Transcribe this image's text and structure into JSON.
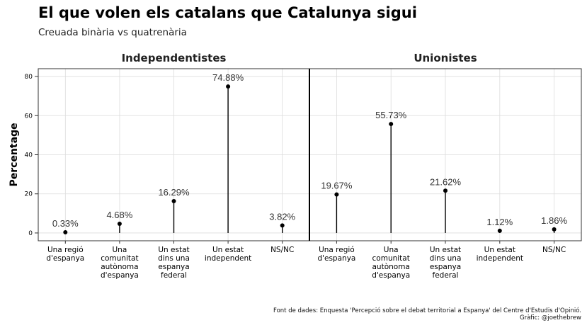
{
  "title": "El que volen els catalans que Catalunya sigui",
  "subtitle": "Creuada binària vs quatrenària",
  "caption": {
    "line1": "Font de dades: Enquesta 'Percepció sobre el debat territorial a Espanya' del Centre d'Estudis d'Opinió.",
    "line2": "Gràfic: @joethebrew"
  },
  "chart_data": {
    "type": "scatter",
    "ylabel": "Percentage",
    "ylim": [
      -4,
      84
    ],
    "yticks": [
      0,
      20,
      40,
      60,
      80
    ],
    "grid": true,
    "categories": [
      [
        "Una regió",
        "d'espanya"
      ],
      [
        "Una",
        "comunitat",
        "autònoma",
        "d'espanya"
      ],
      [
        "Un estat",
        "dins una",
        "espanya",
        "federal"
      ],
      [
        "Un estat",
        "independent"
      ],
      [
        "NS/NC"
      ]
    ],
    "panels": [
      {
        "name": "Independentistes",
        "values": [
          0.33,
          4.68,
          16.29,
          74.88,
          3.82
        ],
        "labels": [
          "0.33%",
          "4.68%",
          "16.29%",
          "74.88%",
          "3.82%"
        ]
      },
      {
        "name": "Unionistes",
        "values": [
          19.67,
          55.73,
          21.62,
          1.12,
          1.86
        ],
        "labels": [
          "19.67%",
          "55.73%",
          "21.62%",
          "1.12%",
          "1.86%"
        ]
      }
    ],
    "colors": {
      "mark": "#000000",
      "grid": "#dcdcdc",
      "panel_border": "#333333"
    }
  }
}
